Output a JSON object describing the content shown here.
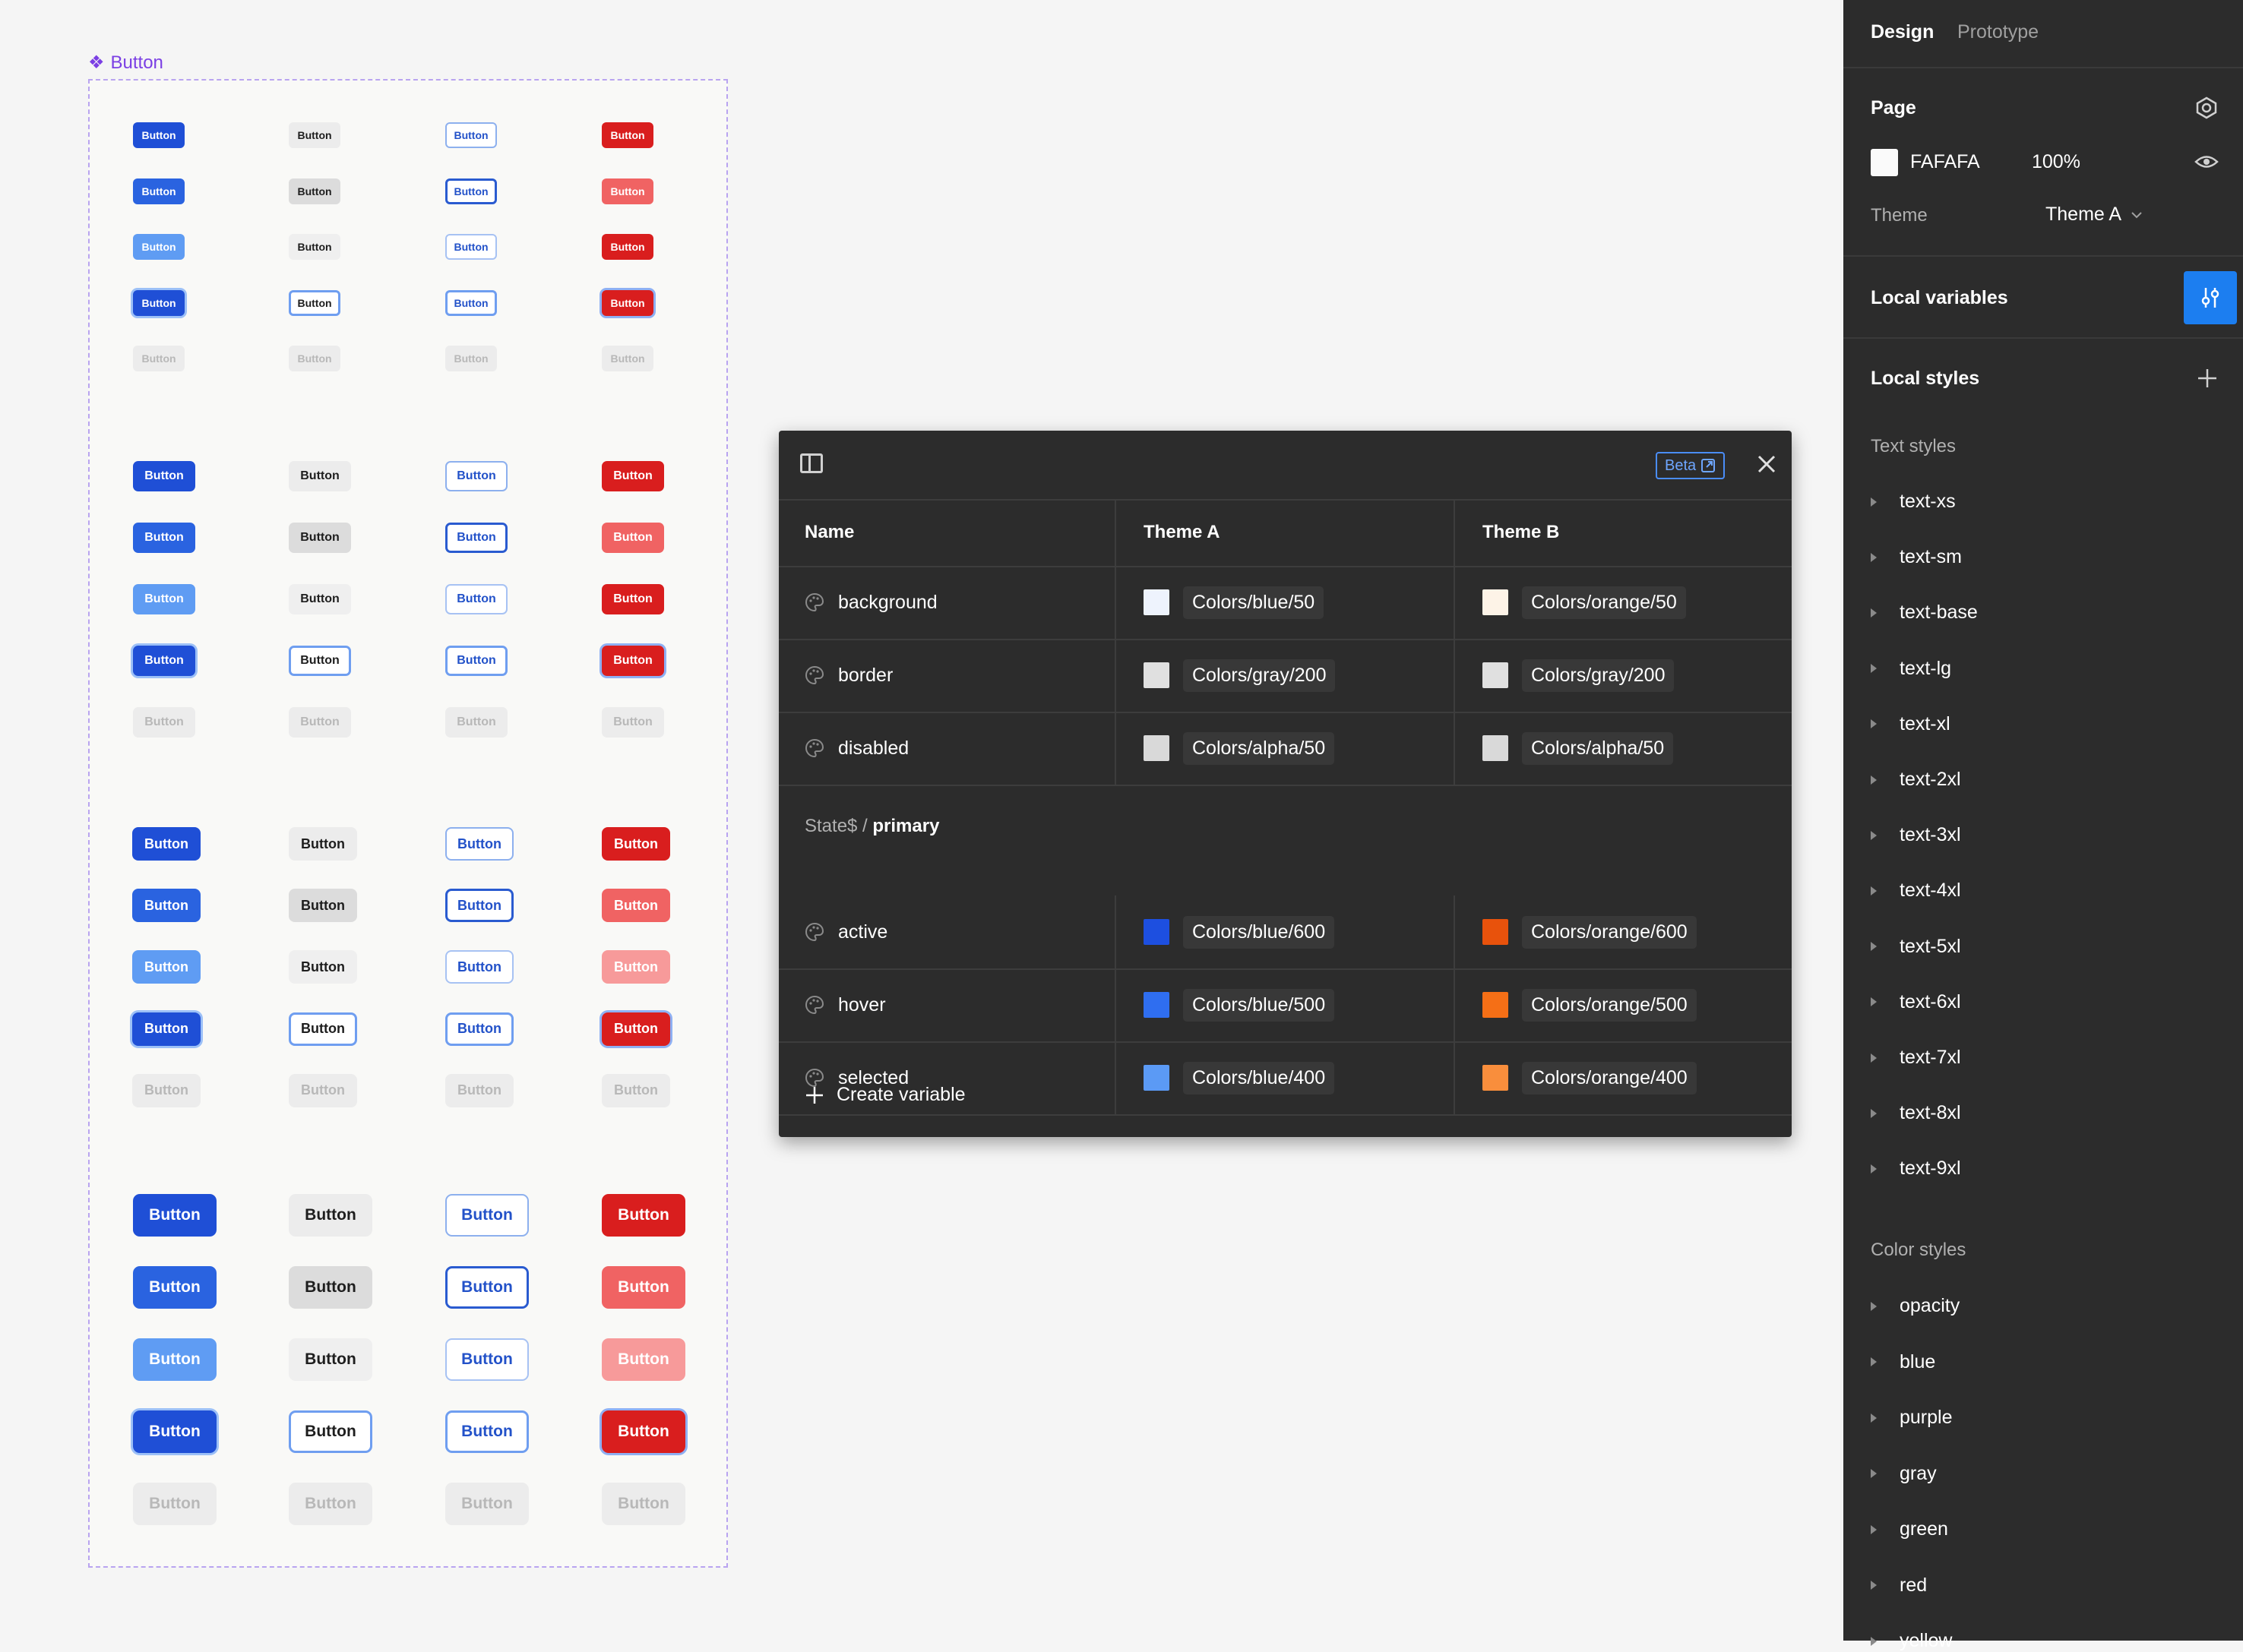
{
  "canvas": {
    "frame_label": "Button",
    "button_label": "Button",
    "button_styles": [
      [
        "blue-default",
        "gray-default",
        "out-default",
        "red-default"
      ],
      [
        "blue-hover",
        "gray-hover",
        "out-hover",
        "red-hover"
      ],
      [
        "blue-light",
        "gray-light",
        "out-light",
        "red-default"
      ],
      [
        "blue-focus",
        "gray-focus",
        "out-focus",
        "red-focus"
      ],
      [
        "disabled",
        "disabled",
        "disabled",
        "disabled"
      ]
    ],
    "button_styles_large": [
      [
        "blue-default",
        "gray-default",
        "out-default",
        "red-default"
      ],
      [
        "blue-hover",
        "gray-hover",
        "out-hover",
        "red-hover"
      ],
      [
        "blue-light",
        "gray-light",
        "out-light",
        "red-light"
      ],
      [
        "blue-focus",
        "gray-focus",
        "out-focus",
        "red-focus"
      ],
      [
        "disabled",
        "disabled",
        "disabled",
        "disabled"
      ]
    ]
  },
  "modal": {
    "beta_label": "Beta",
    "columns": [
      "Name",
      "Theme A",
      "Theme B"
    ],
    "rows": [
      {
        "name": "background",
        "a_color": "#eef3fd",
        "a_label": "Colors/blue/50",
        "b_color": "#fdf3e7",
        "b_label": "Colors/orange/50"
      },
      {
        "name": "border",
        "a_color": "#e0e0e0",
        "a_label": "Colors/gray/200",
        "b_color": "#e0e0e0",
        "b_label": "Colors/gray/200"
      },
      {
        "name": "disabled",
        "a_color": "#d9d9d9",
        "a_label": "Colors/alpha/50",
        "b_color": "#d9d9d9",
        "b_label": "Colors/alpha/50"
      }
    ],
    "group": {
      "prefix": "State$ / ",
      "name": "primary"
    },
    "group_rows": [
      {
        "name": "active",
        "a_color": "#1d4fe0",
        "a_label": "Colors/blue/600",
        "b_color": "#e8520c",
        "b_label": "Colors/orange/600"
      },
      {
        "name": "hover",
        "a_color": "#2f6ef0",
        "a_label": "Colors/blue/500",
        "b_color": "#f56f16",
        "b_label": "Colors/orange/500"
      },
      {
        "name": "selected",
        "a_color": "#5b9af5",
        "a_label": "Colors/blue/400",
        "b_color": "#f98e3c",
        "b_label": "Colors/orange/400"
      }
    ],
    "create_variable": "Create variable"
  },
  "panel": {
    "tabs": [
      "Design",
      "Prototype"
    ],
    "page_title": "Page",
    "page_color_hex": "FAFAFA",
    "page_color": "#fafafa",
    "page_opacity": "100%",
    "theme_label": "Theme",
    "theme_value": "Theme A",
    "local_variables": "Local variables",
    "local_styles": "Local styles",
    "text_styles_label": "Text styles",
    "text_styles": [
      "text-xs",
      "text-sm",
      "text-base",
      "text-lg",
      "text-xl",
      "text-2xl",
      "text-3xl",
      "text-4xl",
      "text-5xl",
      "text-6xl",
      "text-7xl",
      "text-8xl",
      "text-9xl"
    ],
    "color_styles_label": "Color styles",
    "color_styles": [
      "opacity",
      "blue",
      "purple",
      "gray",
      "green",
      "red",
      "yellow"
    ]
  }
}
